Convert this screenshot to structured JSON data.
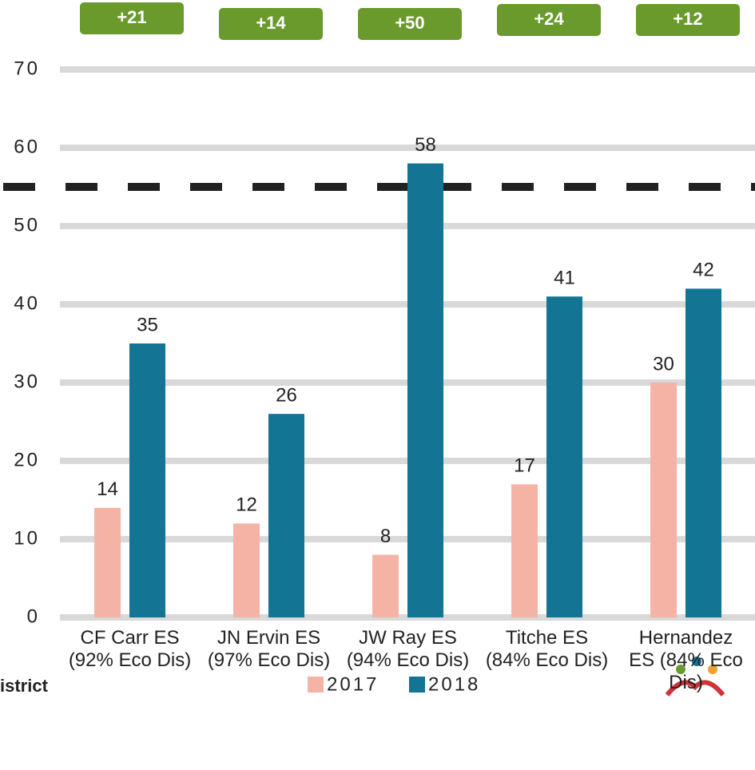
{
  "chart_data": {
    "type": "bar",
    "categories": [
      "CF Carr ES (92% Eco Dis)",
      "JN Ervin ES (97% Eco Dis)",
      "JW Ray ES (94% Eco Dis)",
      "Titche ES (84% Eco Dis)",
      "Hernandez ES (84% Eco Dis)"
    ],
    "series": [
      {
        "name": "2017",
        "color": "#f5b3a6",
        "values": [
          14,
          12,
          8,
          17,
          30
        ]
      },
      {
        "name": "2018",
        "color": "#137493",
        "values": [
          35,
          26,
          58,
          41,
          42
        ]
      }
    ],
    "annotations": [
      "+21",
      "+14",
      "+50",
      "+24",
      "+12"
    ],
    "annotation_color": "#6a9a2c",
    "reference_line": 55,
    "ylim": [
      0,
      70
    ],
    "yticks": [
      0,
      10,
      20,
      30,
      40,
      50,
      60,
      70
    ],
    "grid": true,
    "legend": "bottom",
    "footer_text": "istrict"
  }
}
